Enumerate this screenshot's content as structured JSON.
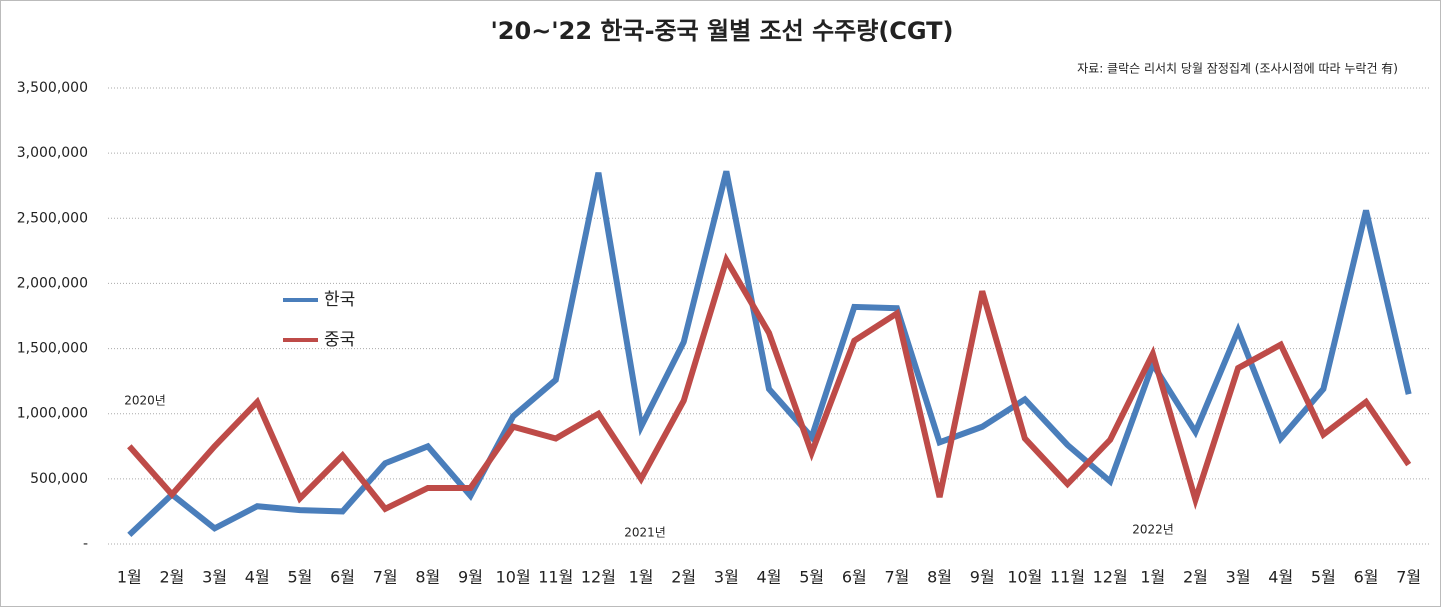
{
  "chart_data": {
    "type": "line",
    "title": "'20~'22 한국-중국 월별 조선 수주량(CGT)",
    "subtitle": "자료: 클락슨 리서치 당월 잠정집계 (조사시점에 따라 누락건 有)",
    "annotations": [
      "2020년",
      "2021년",
      "2022년"
    ],
    "categories": [
      "1월",
      "2월",
      "3월",
      "4월",
      "5월",
      "6월",
      "7월",
      "8월",
      "9월",
      "10월",
      "11월",
      "12월",
      "1월",
      "2월",
      "3월",
      "4월",
      "5월",
      "6월",
      "7월",
      "8월",
      "9월",
      "10월",
      "11월",
      "12월",
      "1월",
      "2월",
      "3월",
      "4월",
      "5월",
      "6월",
      "7월"
    ],
    "series": [
      {
        "name": "한국",
        "color": "#4a7ebb",
        "values": [
          70000,
          380000,
          120000,
          290000,
          260000,
          250000,
          620000,
          750000,
          370000,
          980000,
          1260000,
          2850000,
          900000,
          1550000,
          2860000,
          1190000,
          820000,
          1820000,
          1810000,
          780000,
          900000,
          1110000,
          760000,
          480000,
          1380000,
          860000,
          1640000,
          810000,
          1190000,
          2560000,
          1150000
        ]
      },
      {
        "name": "중국",
        "color": "#be4b48",
        "values": [
          750000,
          380000,
          750000,
          1090000,
          350000,
          680000,
          270000,
          430000,
          430000,
          900000,
          810000,
          1000000,
          500000,
          1100000,
          2180000,
          1620000,
          700000,
          1560000,
          1770000,
          360000,
          1940000,
          810000,
          460000,
          800000,
          1460000,
          340000,
          1350000,
          1530000,
          840000,
          1090000,
          610000
        ]
      }
    ],
    "ylim": [
      0,
      3500000
    ],
    "yticks": [
      {
        "value": 0,
        "label": "-"
      },
      {
        "value": 500000,
        "label": "500,000"
      },
      {
        "value": 1000000,
        "label": "1,000,000"
      },
      {
        "value": 1500000,
        "label": "1,500,000"
      },
      {
        "value": 2000000,
        "label": "2,000,000"
      },
      {
        "value": 2500000,
        "label": "2,500,000"
      },
      {
        "value": 3000000,
        "label": "3,000,000"
      },
      {
        "value": 3500000,
        "label": "3,500,000"
      }
    ],
    "grid": true
  }
}
